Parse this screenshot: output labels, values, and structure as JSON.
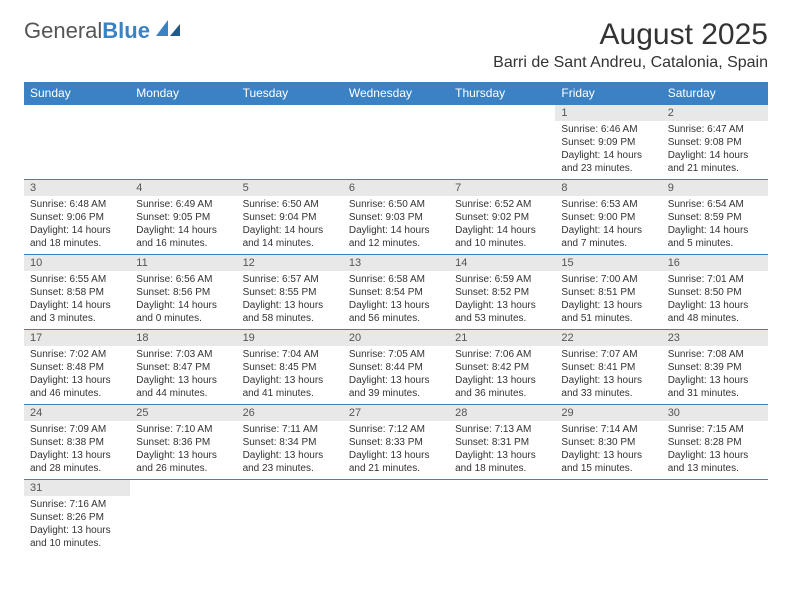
{
  "logo": {
    "part1": "General",
    "part2": "Blue"
  },
  "title": "August 2025",
  "location": "Barri de Sant Andreu, Catalonia, Spain",
  "colors": {
    "header_bg": "#3b82c4",
    "header_text": "#ffffff",
    "daynum_bg": "#e8e8e8",
    "border": "#3b82c4",
    "text": "#333333"
  },
  "day_headers": [
    "Sunday",
    "Monday",
    "Tuesday",
    "Wednesday",
    "Thursday",
    "Friday",
    "Saturday"
  ],
  "weeks": [
    [
      null,
      null,
      null,
      null,
      null,
      {
        "n": "1",
        "sr": "6:46 AM",
        "ss": "9:09 PM",
        "dl": "14 hours and 23 minutes."
      },
      {
        "n": "2",
        "sr": "6:47 AM",
        "ss": "9:08 PM",
        "dl": "14 hours and 21 minutes."
      }
    ],
    [
      {
        "n": "3",
        "sr": "6:48 AM",
        "ss": "9:06 PM",
        "dl": "14 hours and 18 minutes."
      },
      {
        "n": "4",
        "sr": "6:49 AM",
        "ss": "9:05 PM",
        "dl": "14 hours and 16 minutes."
      },
      {
        "n": "5",
        "sr": "6:50 AM",
        "ss": "9:04 PM",
        "dl": "14 hours and 14 minutes."
      },
      {
        "n": "6",
        "sr": "6:50 AM",
        "ss": "9:03 PM",
        "dl": "14 hours and 12 minutes."
      },
      {
        "n": "7",
        "sr": "6:52 AM",
        "ss": "9:02 PM",
        "dl": "14 hours and 10 minutes."
      },
      {
        "n": "8",
        "sr": "6:53 AM",
        "ss": "9:00 PM",
        "dl": "14 hours and 7 minutes."
      },
      {
        "n": "9",
        "sr": "6:54 AM",
        "ss": "8:59 PM",
        "dl": "14 hours and 5 minutes."
      }
    ],
    [
      {
        "n": "10",
        "sr": "6:55 AM",
        "ss": "8:58 PM",
        "dl": "14 hours and 3 minutes."
      },
      {
        "n": "11",
        "sr": "6:56 AM",
        "ss": "8:56 PM",
        "dl": "14 hours and 0 minutes."
      },
      {
        "n": "12",
        "sr": "6:57 AM",
        "ss": "8:55 PM",
        "dl": "13 hours and 58 minutes."
      },
      {
        "n": "13",
        "sr": "6:58 AM",
        "ss": "8:54 PM",
        "dl": "13 hours and 56 minutes."
      },
      {
        "n": "14",
        "sr": "6:59 AM",
        "ss": "8:52 PM",
        "dl": "13 hours and 53 minutes."
      },
      {
        "n": "15",
        "sr": "7:00 AM",
        "ss": "8:51 PM",
        "dl": "13 hours and 51 minutes."
      },
      {
        "n": "16",
        "sr": "7:01 AM",
        "ss": "8:50 PM",
        "dl": "13 hours and 48 minutes."
      }
    ],
    [
      {
        "n": "17",
        "sr": "7:02 AM",
        "ss": "8:48 PM",
        "dl": "13 hours and 46 minutes."
      },
      {
        "n": "18",
        "sr": "7:03 AM",
        "ss": "8:47 PM",
        "dl": "13 hours and 44 minutes."
      },
      {
        "n": "19",
        "sr": "7:04 AM",
        "ss": "8:45 PM",
        "dl": "13 hours and 41 minutes."
      },
      {
        "n": "20",
        "sr": "7:05 AM",
        "ss": "8:44 PM",
        "dl": "13 hours and 39 minutes."
      },
      {
        "n": "21",
        "sr": "7:06 AM",
        "ss": "8:42 PM",
        "dl": "13 hours and 36 minutes."
      },
      {
        "n": "22",
        "sr": "7:07 AM",
        "ss": "8:41 PM",
        "dl": "13 hours and 33 minutes."
      },
      {
        "n": "23",
        "sr": "7:08 AM",
        "ss": "8:39 PM",
        "dl": "13 hours and 31 minutes."
      }
    ],
    [
      {
        "n": "24",
        "sr": "7:09 AM",
        "ss": "8:38 PM",
        "dl": "13 hours and 28 minutes."
      },
      {
        "n": "25",
        "sr": "7:10 AM",
        "ss": "8:36 PM",
        "dl": "13 hours and 26 minutes."
      },
      {
        "n": "26",
        "sr": "7:11 AM",
        "ss": "8:34 PM",
        "dl": "13 hours and 23 minutes."
      },
      {
        "n": "27",
        "sr": "7:12 AM",
        "ss": "8:33 PM",
        "dl": "13 hours and 21 minutes."
      },
      {
        "n": "28",
        "sr": "7:13 AM",
        "ss": "8:31 PM",
        "dl": "13 hours and 18 minutes."
      },
      {
        "n": "29",
        "sr": "7:14 AM",
        "ss": "8:30 PM",
        "dl": "13 hours and 15 minutes."
      },
      {
        "n": "30",
        "sr": "7:15 AM",
        "ss": "8:28 PM",
        "dl": "13 hours and 13 minutes."
      }
    ],
    [
      {
        "n": "31",
        "sr": "7:16 AM",
        "ss": "8:26 PM",
        "dl": "13 hours and 10 minutes."
      },
      null,
      null,
      null,
      null,
      null,
      null
    ]
  ],
  "labels": {
    "sunrise": "Sunrise:",
    "sunset": "Sunset:",
    "daylight": "Daylight:"
  }
}
